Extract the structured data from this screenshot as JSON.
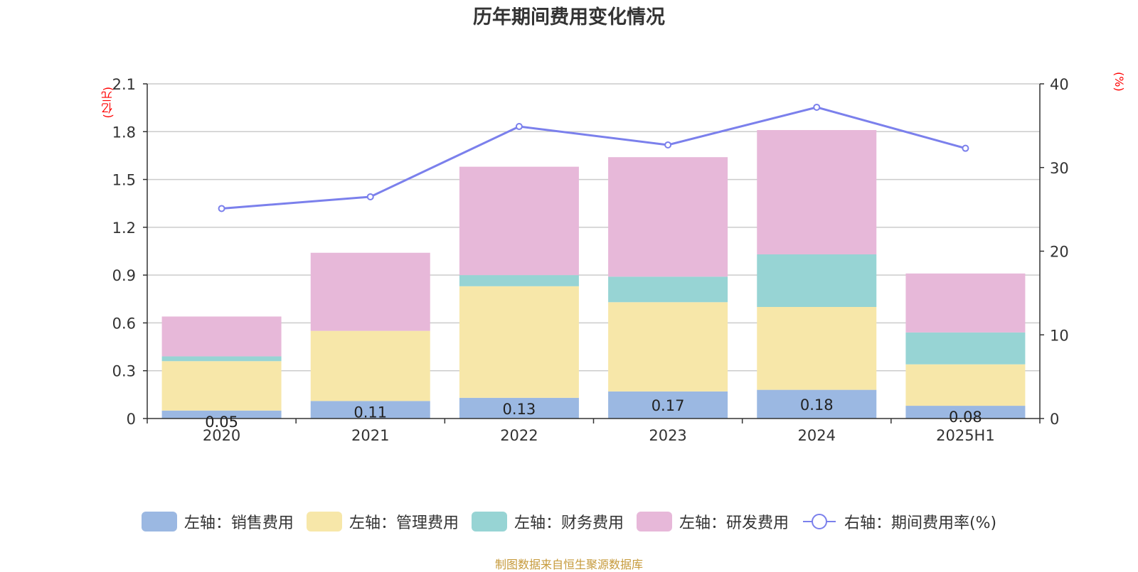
{
  "title": "历年期间费用变化情况",
  "unit_left": "(亿元)",
  "unit_right": "(%)",
  "footer": "制图数据来自恒生聚源数据库",
  "legend": [
    {
      "label": "左轴：销售费用",
      "color": "#9bb8e2"
    },
    {
      "label": "左轴：管理费用",
      "color": "#f7e7a9"
    },
    {
      "label": "左轴：财务费用",
      "color": "#97d4d4"
    },
    {
      "label": "左轴：研发费用",
      "color": "#e7b8d9"
    },
    {
      "label": "右轴：期间费用率(%)",
      "color": "#7b80ec"
    }
  ],
  "chart_data": {
    "type": "bar",
    "stacked": true,
    "title": "历年期间费用变化情况",
    "categories": [
      "2020",
      "2021",
      "2022",
      "2023",
      "2024",
      "2025H1"
    ],
    "y_left": {
      "unit": "(亿元)",
      "ylim": [
        0,
        2.1
      ],
      "ticks": [
        "0",
        "0.3",
        "0.6",
        "0.9",
        "1.2",
        "1.5",
        "1.8",
        "2.1"
      ]
    },
    "y_right": {
      "unit": "(%)",
      "ylim": [
        0,
        40
      ],
      "ticks": [
        "0",
        "10",
        "20",
        "30",
        "40"
      ]
    },
    "grid": true,
    "legend_position": "bottom",
    "series": [
      {
        "name": "左轴：销售费用",
        "axis": "left",
        "color": "#9bb8e2",
        "values": [
          0.05,
          0.11,
          0.13,
          0.17,
          0.18,
          0.08
        ],
        "labels": [
          "0.05",
          "0.11",
          "0.13",
          "0.17",
          "0.18",
          "0.08"
        ]
      },
      {
        "name": "左轴：管理费用",
        "axis": "left",
        "color": "#f7e7a9",
        "values": [
          0.31,
          0.44,
          0.7,
          0.56,
          0.52,
          0.26
        ]
      },
      {
        "name": "左轴：财务费用",
        "axis": "left",
        "color": "#97d4d4",
        "values": [
          0.03,
          0.0,
          0.07,
          0.16,
          0.33,
          0.2
        ]
      },
      {
        "name": "左轴：研发费用",
        "axis": "left",
        "color": "#e7b8d9",
        "values": [
          0.25,
          0.49,
          0.68,
          0.75,
          0.78,
          0.37
        ]
      },
      {
        "name": "右轴：期间费用率(%)",
        "axis": "right",
        "type": "line",
        "color": "#7b80ec",
        "values": [
          25.1,
          26.5,
          34.9,
          32.7,
          37.2,
          32.3
        ]
      }
    ]
  }
}
